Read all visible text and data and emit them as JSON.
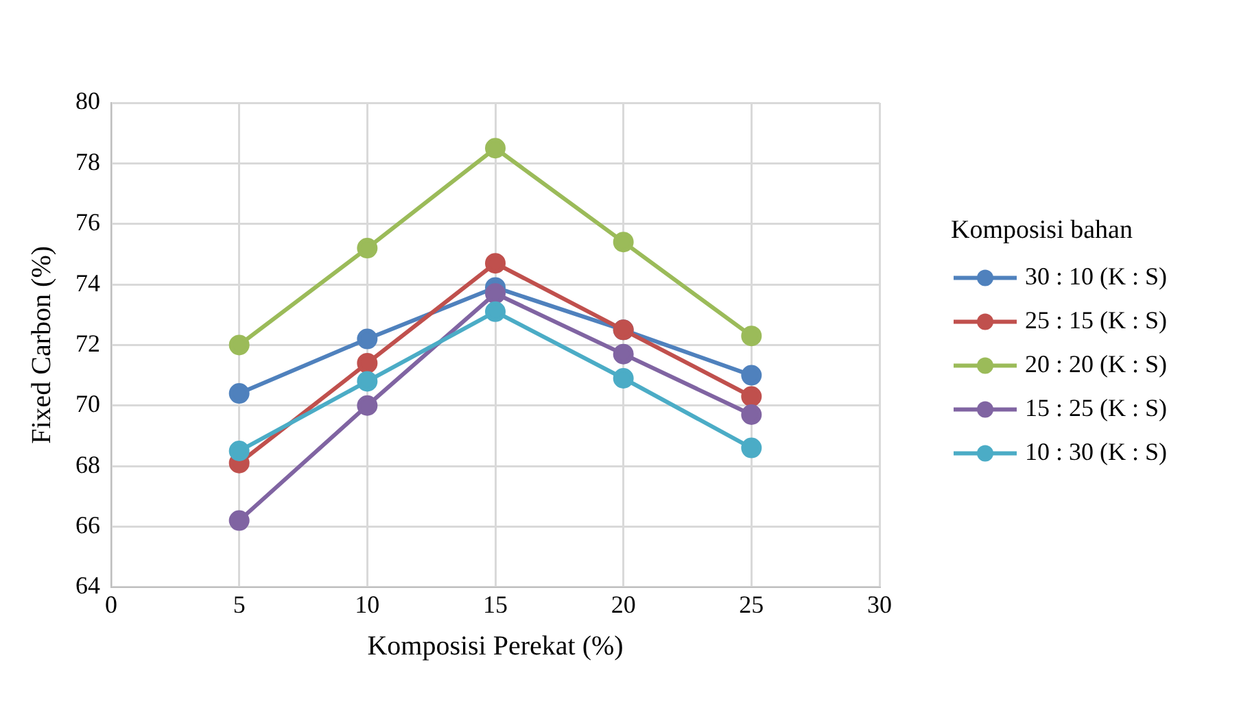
{
  "chart_data": {
    "type": "line",
    "xlabel": "Komposisi Perekat (%)",
    "ylabel": "Fixed Carbon (%)",
    "legend_title": "Komposisi bahan",
    "x": [
      5,
      10,
      15,
      20,
      25
    ],
    "series": [
      {
        "name": "30 : 10 (K : S)",
        "color": "#4f81bd",
        "values": [
          70.4,
          72.2,
          73.9,
          72.5,
          71.0
        ]
      },
      {
        "name": "25 : 15 (K : S)",
        "color": "#c0504d",
        "values": [
          68.1,
          71.4,
          74.7,
          72.5,
          70.3
        ]
      },
      {
        "name": "20 : 20 (K : S)",
        "color": "#9bbb59",
        "values": [
          72.0,
          75.2,
          78.5,
          75.4,
          72.3
        ]
      },
      {
        "name": "15 : 25 (K : S)",
        "color": "#8064a2",
        "values": [
          66.2,
          70.0,
          73.7,
          71.7,
          69.7
        ]
      },
      {
        "name": "10 : 30 (K : S)",
        "color": "#4bacc6",
        "values": [
          68.5,
          70.8,
          73.1,
          70.9,
          68.6
        ]
      }
    ],
    "xlim": [
      0,
      30
    ],
    "xticks": [
      0,
      5,
      10,
      15,
      20,
      25,
      30
    ],
    "ylim": [
      64,
      80
    ],
    "yticks": [
      64,
      66,
      68,
      70,
      72,
      74,
      76,
      78,
      80
    ],
    "grid": true,
    "legend": "right",
    "marker": "circle",
    "line_style": "solid"
  }
}
